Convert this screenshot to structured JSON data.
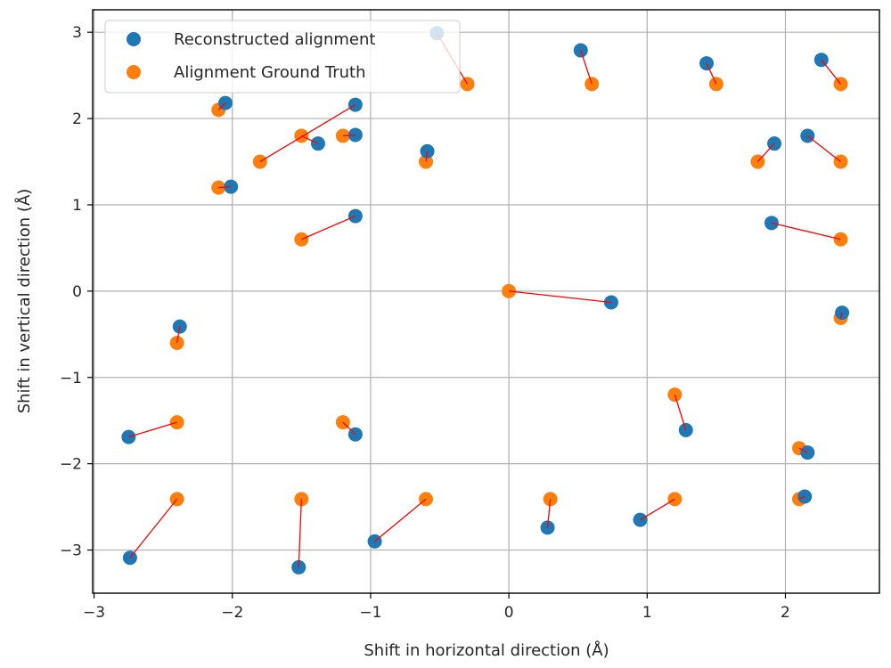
{
  "chart_data": {
    "type": "scatter",
    "title": "",
    "xlabel": "Shift in horizontal direction (Å)",
    "ylabel": "Shift in vertical direction (Å)",
    "xlim": [
      -3.01,
      2.68
    ],
    "ylim": [
      -3.5,
      3.26
    ],
    "xticks": [
      -3,
      -2,
      -1,
      0,
      1,
      2
    ],
    "yticks": [
      -3,
      -2,
      -1,
      0,
      1,
      2,
      3
    ],
    "xtick_labels": [
      "−3",
      "−2",
      "−1",
      "0",
      "1",
      "2"
    ],
    "ytick_labels": [
      "−3",
      "−2",
      "−1",
      "0",
      "1",
      "2",
      "3"
    ],
    "grid": true,
    "legend_position": "top-left",
    "connector_color": "#ff0000",
    "series": [
      {
        "name": "Reconstructed alignment",
        "color": "#1f77b4",
        "x": [
          -2.05,
          -1.11,
          -1.38,
          -1.11,
          -0.59,
          -2.01,
          -1.11,
          -0.52,
          0.52,
          1.43,
          2.26,
          1.92,
          2.16,
          1.9,
          0.74,
          2.41,
          -2.38,
          -2.75,
          -1.11,
          1.28,
          2.16,
          0.95,
          2.14,
          -2.74,
          -1.52,
          -0.97,
          0.28
        ],
        "y": [
          2.18,
          2.16,
          1.71,
          1.81,
          1.62,
          1.21,
          0.87,
          2.99,
          2.79,
          2.64,
          2.68,
          1.71,
          1.8,
          0.79,
          -0.13,
          -0.25,
          -0.41,
          -1.69,
          -1.66,
          -1.61,
          -1.87,
          -2.65,
          -2.38,
          -3.09,
          -3.2,
          -2.9,
          -2.74
        ]
      },
      {
        "name": "Alignment Ground Truth",
        "color": "#ff7f0e",
        "x": [
          -2.1,
          -1.8,
          -1.5,
          -1.2,
          -0.6,
          -2.1,
          -1.5,
          -0.3,
          0.6,
          1.5,
          2.4,
          1.8,
          2.4,
          2.4,
          0.0,
          2.4,
          -2.4,
          -2.4,
          -1.2,
          1.2,
          2.1,
          1.2,
          2.1,
          -2.4,
          -1.5,
          -0.6,
          0.3
        ],
        "y": [
          2.1,
          1.5,
          1.8,
          1.8,
          1.5,
          1.2,
          0.6,
          2.4,
          2.4,
          2.4,
          2.4,
          1.5,
          1.5,
          0.6,
          0.0,
          -0.31,
          -0.6,
          -1.52,
          -1.52,
          -1.2,
          -1.82,
          -2.41,
          -2.41,
          -2.41,
          -2.41,
          -2.41,
          -2.41
        ]
      }
    ]
  }
}
